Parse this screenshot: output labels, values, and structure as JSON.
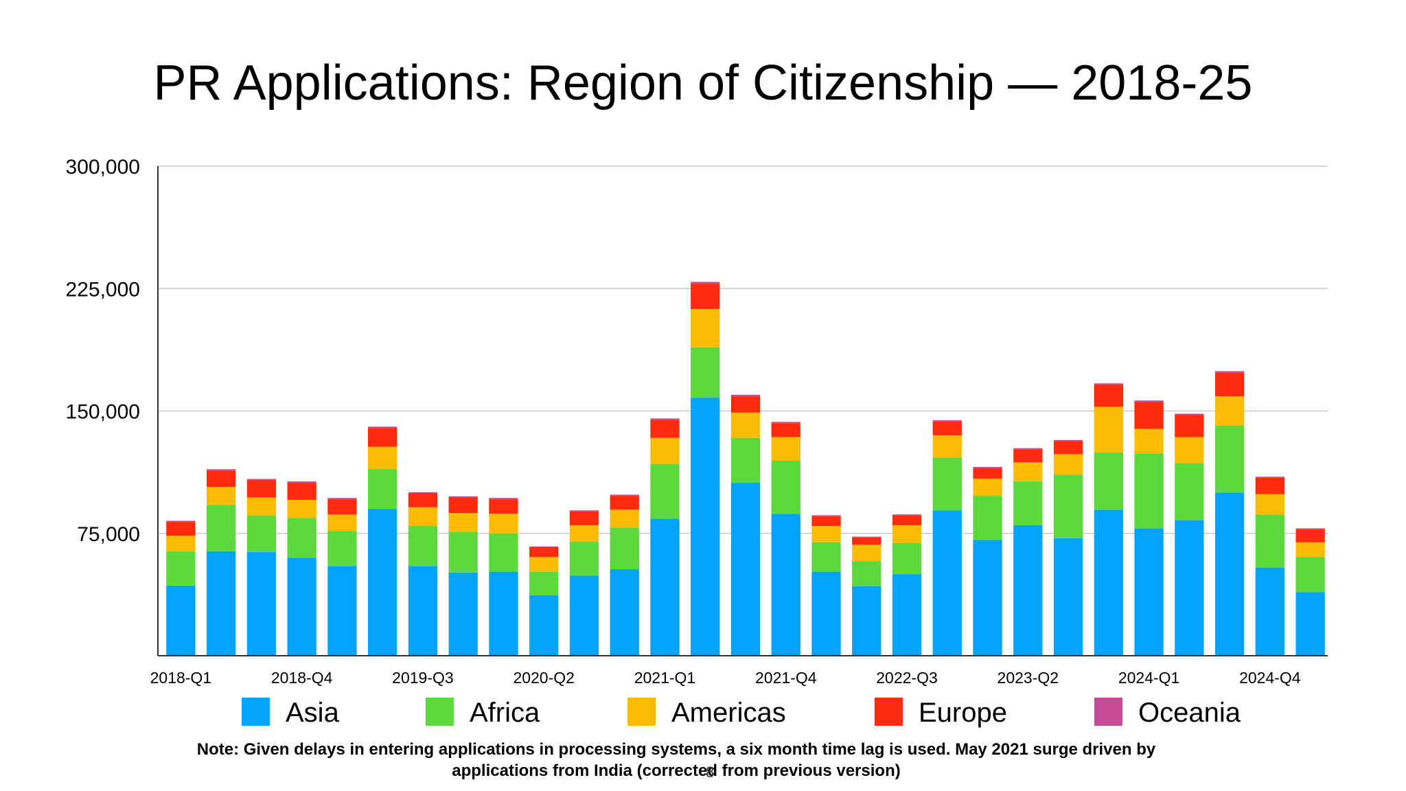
{
  "title": "PR Applications: Region of Citizenship — 2018-25",
  "note_line1": "Note: Given delays in entering applications in processing systems, a six month time lag is used. May 2021 surge driven by",
  "note_line2": "applications from India (corrected from previous version)",
  "page_number": "8",
  "chart_data": {
    "type": "bar",
    "stacked": true,
    "title": "PR Applications: Region of Citizenship — 2018-25",
    "ylim": [
      0,
      300000
    ],
    "yticks": [
      75000,
      150000,
      225000,
      300000
    ],
    "ytick_labels": [
      "75,000",
      "150,000",
      "225,000",
      "300,000"
    ],
    "grid": true,
    "legend": "bottom",
    "categories": [
      "2018-Q1",
      "2018-Q2",
      "2018-Q3",
      "2018-Q4",
      "2019-Q1",
      "2019-Q2",
      "2019-Q3",
      "2019-Q4",
      "2020-Q1",
      "2020-Q2",
      "2020-Q3",
      "2020-Q4",
      "2021-Q1",
      "2021-Q2",
      "2021-Q3",
      "2021-Q4",
      "2022-Q1",
      "2022-Q2",
      "2022-Q3",
      "2022-Q4",
      "2023-Q1",
      "2023-Q2",
      "2023-Q3",
      "2023-Q4",
      "2024-Q1",
      "2024-Q2",
      "2024-Q3",
      "2024-Q4",
      "2025-Q1"
    ],
    "tick_labels": [
      "2018-Q1",
      "",
      "",
      "2018-Q4",
      "",
      "",
      "2019-Q3",
      "",
      "",
      "2020-Q2",
      "",
      "",
      "2021-Q1",
      "",
      "",
      "2021-Q4",
      "",
      "",
      "2022-Q3",
      "",
      "",
      "2023-Q2",
      "",
      "",
      "2024-Q1",
      "",
      "",
      "2024-Q4",
      ""
    ],
    "series": [
      {
        "name": "Asia",
        "color": "#04a3fa",
        "values": [
          43000,
          64000,
          63500,
          60000,
          55000,
          90000,
          55000,
          51000,
          51500,
          37000,
          49000,
          53000,
          84000,
          158000,
          106000,
          87000,
          51500,
          42500,
          50000,
          89000,
          71000,
          80000,
          72000,
          89500,
          78000,
          83000,
          100000,
          54000,
          39000
        ]
      },
      {
        "name": "Africa",
        "color": "#5dd93d",
        "values": [
          21000,
          28500,
          22500,
          24500,
          21500,
          24500,
          24500,
          25000,
          23500,
          14500,
          21000,
          25500,
          33500,
          31000,
          27500,
          32500,
          18000,
          15500,
          19000,
          32500,
          27000,
          27000,
          39000,
          35000,
          46000,
          35000,
          41000,
          32500,
          21500
        ]
      },
      {
        "name": "Americas",
        "color": "#fbbd04",
        "values": [
          9500,
          11000,
          11000,
          11000,
          10000,
          13500,
          11500,
          11500,
          12000,
          9000,
          10000,
          11000,
          16000,
          23500,
          15500,
          14500,
          10000,
          10000,
          11000,
          13500,
          10500,
          11500,
          12500,
          28000,
          15000,
          16000,
          18000,
          12500,
          9000
        ]
      },
      {
        "name": "Europe",
        "color": "#fe2b0c",
        "values": [
          8500,
          10000,
          10500,
          10500,
          9500,
          11500,
          8500,
          9500,
          9000,
          6000,
          8500,
          8500,
          11000,
          15500,
          10000,
          8500,
          6000,
          4500,
          6000,
          8500,
          6500,
          8000,
          8000,
          13500,
          16500,
          13500,
          14500,
          10000,
          8000
        ]
      },
      {
        "name": "Oceania",
        "color": "#c44b96",
        "values": [
          700,
          800,
          800,
          800,
          700,
          900,
          700,
          700,
          700,
          500,
          600,
          700,
          900,
          1100,
          900,
          800,
          600,
          500,
          600,
          800,
          700,
          700,
          700,
          900,
          900,
          800,
          900,
          700,
          600
        ]
      }
    ]
  }
}
